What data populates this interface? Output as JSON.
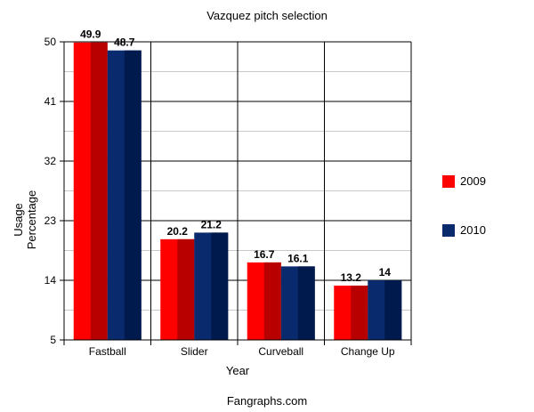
{
  "chart_data": {
    "type": "bar",
    "title": "Vazquez pitch selection",
    "xlabel": "Year",
    "ylabel_lines": [
      "Usage",
      "Percentage"
    ],
    "categories": [
      "Fastball",
      "Slider",
      "Curveball",
      "Change Up"
    ],
    "series": [
      {
        "name": "2009",
        "values": [
          49.9,
          20.2,
          16.7,
          13.2
        ],
        "color": "#ff0000",
        "shade": "#b80000"
      },
      {
        "name": "2010",
        "values": [
          48.7,
          21.2,
          16.1,
          14
        ],
        "color": "#0a2a6e",
        "shade": "#001a4d"
      }
    ],
    "ylim": [
      5,
      50
    ],
    "yticks": [
      5,
      14,
      23,
      32,
      41,
      50
    ],
    "minor_gridlines": true,
    "legend": "right",
    "footer": "Fangraphs.com"
  }
}
